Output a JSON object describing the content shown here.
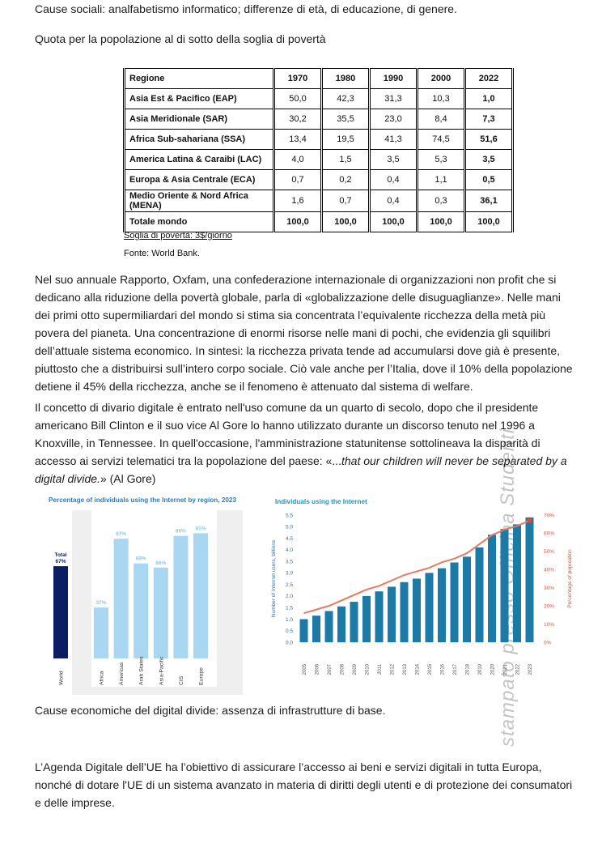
{
  "page": {
    "title_line": "Quota per la popolazione al di sotto della soglia di povertà"
  },
  "poverty_table": {
    "headers": [
      "Regione",
      "1970",
      "1980",
      "1990",
      "2000",
      "2022"
    ],
    "rows": [
      {
        "region": "Asia Est & Pacifico (EAP)",
        "values": [
          "50,0",
          "42,3",
          "31,3",
          "10,3",
          "1,0"
        ]
      },
      {
        "region": "Asia Meridionale (SAR)",
        "values": [
          "30,2",
          "35,5",
          "23,0",
          "8,4",
          "7,3"
        ]
      },
      {
        "region": "Africa Sub-sahariana (SSA)",
        "values": [
          "13,4",
          "19,5",
          "41,3",
          "74,5",
          "51,6"
        ]
      },
      {
        "region": "America Latina & Caraibi (LAC)",
        "values": [
          "4,0",
          "1,5",
          "3,5",
          "5,3",
          "3,5"
        ]
      },
      {
        "region": "Europa & Asia Centrale (ECA)",
        "values": [
          "0,7",
          "0,2",
          "0,4",
          "1,1",
          "0,5"
        ]
      },
      {
        "region": "Medio Oriente & Nord Africa (MENA)",
        "values": [
          "1,6",
          "0,7",
          "0,4",
          "0,3",
          "36,1"
        ]
      },
      {
        "region": "Totale mondo",
        "values": [
          "100,0",
          "100,0",
          "100,0",
          "100,0",
          "100,0"
        ],
        "total": true
      }
    ],
    "footnote": "Soglia di povertà: 3$/giorno",
    "source": "Fonte: World Bank."
  },
  "paragraphs": {
    "oxfam": "Nel suo annuale Rapporto, Oxfam, una confederazione internazionale di organizzazioni non profit che si dedicano alla riduzione della povertà globale, parla di «globalizzazione delle disuguaglianze». Nelle mani dei primi otto supermiliardari del mondo si stima sia concentrata l’equivalente ricchezza della metà più povera del pianeta. Una concentrazione di enormi risorse nelle mani di pochi, che evidenzia gli squilibri dell’attuale sistema economico. In sintesi: la ricchezza privata tende ad accumularsi dove già è presente, piuttosto che a distribuirsi sull’intero corpo sociale. Ciò vale anche per l’Italia, dove il 10% della popolazione detiene il 45% della ricchezza, anche se il fenomeno è attenuato dal sistema di welfare.",
    "digital_divide_intro": "Il concetto di divario digitale è entrato nell'uso comune da un quarto di secolo, dopo che il presidente americano Bill Clinton e il suo vice Al Gore lo hanno utilizzato durante un discorso tenuto nel 1996 a Knoxville, in Tennessee. In quell'occasione, l'amministrazione statunitense sottolineava la disparità di accesso ai servizi telematici tra la popolazione del paese: «...",
    "digital_divide_quote_italic": "that our children will never be separated by a digital divide.",
    "digital_divide_outro": "» (Al Gore)",
    "cause_economiche": "Cause economiche del digital divide: assenza di infrastrutture di base.",
    "cause_sociali": "Cause sociali: analfabetismo informatico; differenze di età, di educazione, di genere.",
    "agenda": "L’Agenda Digitale dell’UE ha l’obiettivo di assicurare l’accesso ai beni e servizi digitali in tutta Europa, nonché di dotare l'UE di un sistema avanzato in materia di diritti degli utenti e di protezione dei consumatori e delle imprese."
  },
  "watermark": "stampato presso Officina Studenti",
  "chart_data": [
    {
      "type": "bar",
      "title": "Percentage of individuals using the Internet by region, 2023",
      "categories": [
        "World",
        "Africa",
        "Americas",
        "Arab States",
        "Asia-Pacific",
        "CIS",
        "Europe"
      ],
      "values": [
        67,
        37,
        87,
        69,
        66,
        89,
        91
      ],
      "value_labels": [
        "Total 67%",
        "37%",
        "87%",
        "69%",
        "66%",
        "89%",
        "91%"
      ],
      "xlabel": "",
      "ylabel": "",
      "ylim": [
        0,
        100
      ],
      "grid": false,
      "legend": "none",
      "colors": {
        "world_bar": "#0b1d63",
        "region_bar": "#a9d7f1",
        "label_light": "#8fc8ea",
        "title": "#2c7bc0",
        "band": "#efefef",
        "category_text": "#333333"
      }
    },
    {
      "type": "bar+line",
      "title": "Individuals using the Internet",
      "x": [
        "2005",
        "2006",
        "2007",
        "2008",
        "2009",
        "2010",
        "2011",
        "2012",
        "2013",
        "2014",
        "2015",
        "2016",
        "2017",
        "2018",
        "2019",
        "2020",
        "2021",
        "2022",
        "2023"
      ],
      "series": [
        {
          "name": "Number of Internet users, billions",
          "type": "bar",
          "axis": "left",
          "values": [
            1.0,
            1.15,
            1.35,
            1.55,
            1.75,
            2.0,
            2.2,
            2.4,
            2.6,
            2.75,
            3.0,
            3.2,
            3.45,
            3.7,
            4.1,
            4.65,
            4.9,
            5.1,
            5.4
          ]
        },
        {
          "name": "Percentage of population",
          "type": "line",
          "axis": "right",
          "values": [
            16,
            18,
            20,
            23,
            26,
            29,
            31,
            34,
            37,
            39,
            41,
            44,
            46,
            49,
            54,
            59,
            62,
            64,
            67
          ]
        }
      ],
      "ylabel_left": "Number of Internet users, billions",
      "ylabel_right": "Percentage of population",
      "ylim_left": [
        0,
        5.5
      ],
      "ylim_right": [
        0,
        70
      ],
      "yticks_left": [
        "0.0",
        "0.5",
        "1.0",
        "1.5",
        "2.0",
        "2.5",
        "3.0",
        "3.5",
        "4.0",
        "4.5",
        "5.0",
        "5.5"
      ],
      "yticks_right": [
        "0%",
        "10%",
        "20%",
        "30%",
        "40%",
        "50%",
        "60%",
        "70%"
      ],
      "grid": false,
      "legend": "none",
      "colors": {
        "bar": "#1b7aa6",
        "line": "#e87a61",
        "marker": "#d94f3d",
        "left_axis": "#2e75b6",
        "right_axis": "#c0614a",
        "title": "#2196c0",
        "year_text": "#555555"
      }
    }
  ]
}
